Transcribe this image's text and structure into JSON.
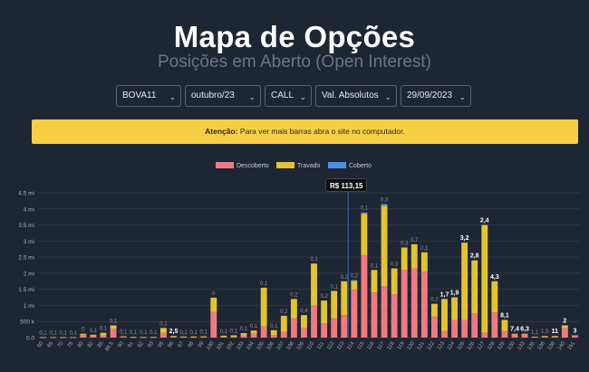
{
  "header": {
    "title": "Mapa de Opções",
    "subtitle": "Posições em Aberto (Open Interest)"
  },
  "filters": [
    {
      "name": "ticker-select",
      "value": "BOVA11"
    },
    {
      "name": "expiry-select",
      "value": "outubro/23"
    },
    {
      "name": "type-select",
      "value": "CALL"
    },
    {
      "name": "values-mode-select",
      "value": "Val. Absolutos"
    },
    {
      "name": "date-select",
      "value": "29/09/2023"
    }
  ],
  "alert": {
    "bold": "Atenção:",
    "text": " Para ver mais barras abra o site no computador."
  },
  "tooltip": "R$ 113,15",
  "colors": {
    "descoberto": "#f07a80",
    "travado": "#e3c430",
    "coberto": "#4a90e2",
    "grid": "#343c4a",
    "price_line": "#2f6fbd"
  },
  "chart_data": {
    "type": "bar",
    "stacked": true,
    "legend_position": "top-center",
    "grid": true,
    "ylim": [
      0,
      4500000
    ],
    "y_ticks": [
      0,
      500000,
      1000000,
      1500000,
      2000000,
      2500000,
      3000000,
      3500000,
      4000000,
      4500000
    ],
    "y_tick_labels": [
      "0.0",
      "500 k",
      "1 mi",
      "1.5 mi",
      "2 mi",
      "2.5 mi",
      "3 mi",
      "3.5 mi",
      "4 mi",
      "4.5 mi"
    ],
    "current_price_label": "R$ 113,15",
    "current_price_category": "114",
    "categories": [
      "60",
      "65",
      "70",
      "75",
      "80",
      "82",
      "85",
      "86.5",
      "90",
      "91",
      "92",
      "93",
      "95",
      "96",
      "97",
      "98",
      "99",
      "100",
      "101",
      "102",
      "103",
      "104",
      "105",
      "106",
      "107",
      "108",
      "109",
      "110",
      "111",
      "112",
      "113",
      "114",
      "115",
      "116",
      "117",
      "118",
      "119",
      "120",
      "121",
      "122",
      "123",
      "124",
      "125",
      "126",
      "127",
      "128",
      "129",
      "130",
      "133",
      "135",
      "136",
      "138",
      "140",
      "151"
    ],
    "series": [
      {
        "name": "Descoberto",
        "values": [
          5000,
          5000,
          5000,
          5000,
          80000,
          60000,
          70000,
          280000,
          20000,
          10000,
          10000,
          10000,
          150000,
          30000,
          15000,
          15000,
          30000,
          800000,
          30000,
          30000,
          60000,
          120000,
          350000,
          80000,
          180000,
          600000,
          300000,
          1000000,
          450000,
          600000,
          700000,
          1500000,
          2550000,
          1400000,
          1600000,
          1350000,
          2100000,
          2150000,
          2050000,
          650000,
          200000,
          550000,
          550000,
          750000,
          150000,
          780000,
          200000,
          100000,
          100000,
          20000,
          30000,
          40000,
          300000,
          50000
        ]
      },
      {
        "name": "Travado",
        "values": [
          10000,
          10000,
          10000,
          10000,
          40000,
          30000,
          80000,
          100000,
          20000,
          15000,
          15000,
          15000,
          150000,
          20000,
          20000,
          20000,
          10000,
          440000,
          30000,
          40000,
          80000,
          100000,
          1200000,
          150000,
          500000,
          600000,
          400000,
          1300000,
          700000,
          850000,
          1050000,
          260000,
          1300000,
          700000,
          2500000,
          800000,
          700000,
          750000,
          600000,
          400000,
          1000000,
          700000,
          2400000,
          1650000,
          3350000,
          970000,
          350000,
          20000,
          20000,
          10000,
          20000,
          10000,
          80000,
          20000
        ]
      },
      {
        "name": "Coberto",
        "values": [
          0,
          0,
          0,
          0,
          0,
          0,
          0,
          0,
          0,
          0,
          0,
          0,
          0,
          0,
          0,
          0,
          0,
          0,
          0,
          0,
          0,
          0,
          0,
          0,
          0,
          0,
          0,
          0,
          0,
          0,
          0,
          30000,
          40000,
          0,
          50000,
          0,
          0,
          0,
          0,
          0,
          0,
          0,
          0,
          0,
          0,
          0,
          0,
          0,
          0,
          0,
          0,
          0,
          0,
          0
        ]
      }
    ],
    "data_labels": [
      "0,1",
      "0,1",
      "0,1",
      "0,1",
      "0",
      "0,1",
      "0,1",
      "0,1",
      "0,1",
      "0,1",
      "0,1",
      "0,1",
      "0,1",
      "2,5",
      "0,1",
      "0,1",
      "0,1",
      "0",
      "0,1",
      "0,1",
      "0,1",
      "0,1",
      "0,1",
      "0,1",
      "0,2",
      "0,2",
      "0,4",
      "0,1",
      "0,2",
      "0,1",
      "0,2",
      "0,2",
      "0,1",
      "0,1",
      "0,3",
      "0,3",
      "0,3",
      "0,7",
      "0,1",
      "0,2",
      "1,7",
      "1,9",
      "3,2",
      "2,8",
      "2,4",
      "4,3",
      "8,1",
      "7,4",
      "6,3",
      "1,1",
      "1,5",
      "11",
      "2",
      "3"
    ],
    "bold_labels": [
      "2,5",
      "1,7",
      "1,9",
      "3,2",
      "2,8",
      "2,4",
      "4,3",
      "8,1",
      "7,4",
      "6,3",
      "11",
      "2",
      "3"
    ]
  }
}
